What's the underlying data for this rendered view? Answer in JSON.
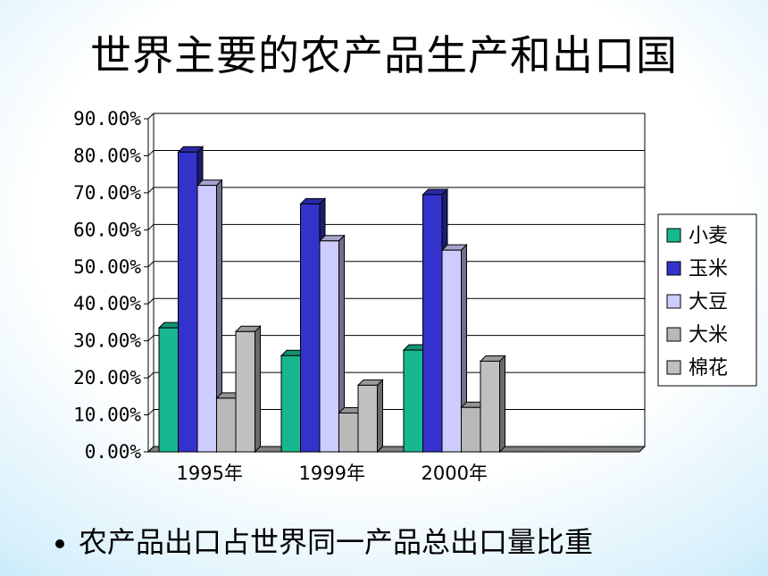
{
  "page": {
    "title": "世界主要的农产品生产和出口国",
    "bullet": "农产品出口占世界同一产品总出口量比重"
  },
  "chart_data": {
    "type": "bar",
    "title": "",
    "xlabel": "",
    "ylabel": "",
    "categories": [
      "1995年",
      "1999年",
      "2000年"
    ],
    "ylim": [
      0,
      90
    ],
    "yticks": [
      "0.00%",
      "10.00%",
      "20.00%",
      "30.00%",
      "40.00%",
      "50.00%",
      "60.00%",
      "70.00%",
      "80.00%",
      "90.00%"
    ],
    "grid": true,
    "legend_position": "right",
    "series": [
      {
        "name": "小麦",
        "values": [
          33.5,
          26.0,
          27.5
        ],
        "color": "#17b890"
      },
      {
        "name": "玉米",
        "values": [
          81.0,
          67.0,
          69.5
        ],
        "color": "#3333cc"
      },
      {
        "name": "大豆",
        "values": [
          72.0,
          57.0,
          54.5
        ],
        "color": "#ccccff"
      },
      {
        "name": "大米",
        "values": [
          14.5,
          10.5,
          12.0
        ],
        "color": "#b8b8b8"
      },
      {
        "name": "棉花",
        "values": [
          32.5,
          18.0,
          24.5
        ],
        "color": "#c0c0c0"
      }
    ]
  }
}
